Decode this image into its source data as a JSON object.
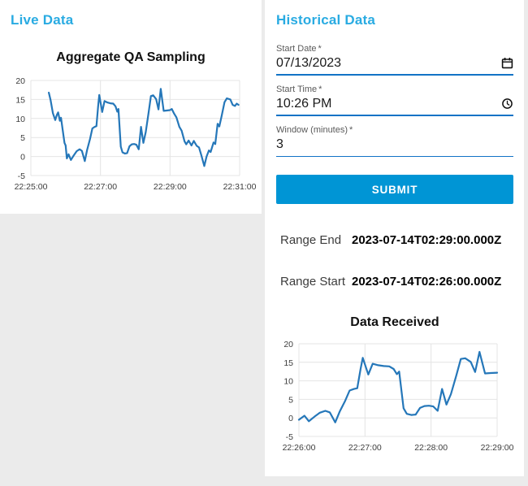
{
  "colors": {
    "page-background": "#ebebeb",
    "card-background": "#ffffff",
    "heading-blue": "#29abe2",
    "submit-blue": "#0095d5",
    "line-blue": "#2577b9",
    "underline-blue": "#1273c6",
    "grid-gray": "#e4e4e4"
  },
  "live_panel": {
    "heading": "Live Data"
  },
  "historical_panel": {
    "heading": "Historical Data",
    "form": {
      "start_date": {
        "label": "Start Date",
        "required": "*",
        "value": "07/13/2023"
      },
      "start_time": {
        "label": "Start Time",
        "required": "*",
        "value": "10:26 PM"
      },
      "window_minutes": {
        "label": "Window (minutes)",
        "required": "*",
        "value": "3"
      },
      "submit_label": "SUBMIT"
    },
    "results": {
      "range_end_label": "Range End",
      "range_end_value": "2023-07-14T02:29:00.000Z",
      "range_start_label": "Range Start",
      "range_start_value": "2023-07-14T02:26:00.000Z"
    }
  },
  "chart_data": [
    {
      "id": "aggregate-qa-sampling",
      "type": "line",
      "title": "Aggregate QA Sampling",
      "line_color": "#2577b9",
      "grid": true,
      "ylim": [
        -5,
        20
      ],
      "yticks": [
        20,
        15,
        10,
        5,
        0,
        -5
      ],
      "x_range_seconds": [
        0,
        360
      ],
      "xticks": [
        {
          "t": 0,
          "label": "22:25:00"
        },
        {
          "t": 120,
          "label": "22:27:00"
        },
        {
          "t": 240,
          "label": "22:29:00"
        },
        {
          "t": 360,
          "label": "22:31:00"
        }
      ],
      "points": [
        [
          31,
          16.8
        ],
        [
          34,
          14.8
        ],
        [
          38,
          11.4
        ],
        [
          42,
          9.6
        ],
        [
          45,
          11.0
        ],
        [
          47,
          11.6
        ],
        [
          50,
          9.4
        ],
        [
          52,
          10.2
        ],
        [
          55,
          6.8
        ],
        [
          58,
          3.6
        ],
        [
          60,
          2.9
        ],
        [
          62,
          -0.5
        ],
        [
          65,
          0.6
        ],
        [
          69,
          -0.9
        ],
        [
          74,
          0.3
        ],
        [
          79,
          1.4
        ],
        [
          84,
          1.9
        ],
        [
          88,
          1.5
        ],
        [
          93,
          -1.2
        ],
        [
          97,
          1.7
        ],
        [
          102,
          4.6
        ],
        [
          106,
          7.4
        ],
        [
          110,
          7.8
        ],
        [
          113,
          8.0
        ],
        [
          116,
          13.2
        ],
        [
          118,
          16.2
        ],
        [
          123,
          11.7
        ],
        [
          127,
          14.6
        ],
        [
          132,
          14.2
        ],
        [
          137,
          14.0
        ],
        [
          142,
          13.9
        ],
        [
          146,
          13.2
        ],
        [
          149,
          11.8
        ],
        [
          151,
          12.5
        ],
        [
          155,
          2.6
        ],
        [
          158,
          1.1
        ],
        [
          162,
          0.8
        ],
        [
          166,
          0.9
        ],
        [
          170,
          2.7
        ],
        [
          174,
          3.2
        ],
        [
          178,
          3.3
        ],
        [
          182,
          3.1
        ],
        [
          186,
          1.9
        ],
        [
          190,
          7.8
        ],
        [
          194,
          3.6
        ],
        [
          198,
          6.4
        ],
        [
          203,
          11.5
        ],
        [
          207,
          15.9
        ],
        [
          211,
          16.1
        ],
        [
          216,
          15.1
        ],
        [
          220,
          12.4
        ],
        [
          224,
          17.8
        ],
        [
          229,
          12.0
        ],
        [
          234,
          12.1
        ],
        [
          240,
          12.2
        ],
        [
          243,
          12.5
        ],
        [
          247,
          11.3
        ],
        [
          251,
          10.3
        ],
        [
          256,
          7.8
        ],
        [
          260,
          6.8
        ],
        [
          265,
          4.0
        ],
        [
          268,
          3.2
        ],
        [
          272,
          4.2
        ],
        [
          277,
          2.9
        ],
        [
          281,
          4.1
        ],
        [
          286,
          2.8
        ],
        [
          290,
          2.4
        ],
        [
          294,
          0.3
        ],
        [
          299,
          -2.5
        ],
        [
          303,
          0.0
        ],
        [
          307,
          1.6
        ],
        [
          310,
          1.2
        ],
        [
          315,
          3.7
        ],
        [
          318,
          3.3
        ],
        [
          322,
          8.6
        ],
        [
          325,
          7.9
        ],
        [
          329,
          10.7
        ],
        [
          334,
          14.3
        ],
        [
          338,
          15.3
        ],
        [
          344,
          15.0
        ],
        [
          348,
          13.6
        ],
        [
          352,
          13.3
        ],
        [
          355,
          13.9
        ],
        [
          358,
          13.6
        ]
      ]
    },
    {
      "id": "data-received",
      "type": "line",
      "title": "Data Received",
      "line_color": "#2577b9",
      "grid": true,
      "ylim": [
        -5,
        20
      ],
      "yticks": [
        20,
        15,
        10,
        5,
        0,
        -5
      ],
      "x_range_seconds": [
        0,
        180
      ],
      "xticks": [
        {
          "t": 0,
          "label": "22:26:00"
        },
        {
          "t": 60,
          "label": "22:27:00"
        },
        {
          "t": 120,
          "label": "22:28:00"
        },
        {
          "t": 180,
          "label": "22:29:00"
        }
      ],
      "points": [
        [
          0,
          -0.5
        ],
        [
          5,
          0.6
        ],
        [
          9,
          -0.9
        ],
        [
          14,
          0.3
        ],
        [
          19,
          1.4
        ],
        [
          24,
          1.9
        ],
        [
          28,
          1.5
        ],
        [
          33,
          -1.2
        ],
        [
          37,
          1.7
        ],
        [
          42,
          4.6
        ],
        [
          46,
          7.4
        ],
        [
          50,
          7.8
        ],
        [
          53,
          8.0
        ],
        [
          56,
          13.2
        ],
        [
          58,
          16.2
        ],
        [
          63,
          11.7
        ],
        [
          67,
          14.6
        ],
        [
          72,
          14.2
        ],
        [
          77,
          14.0
        ],
        [
          82,
          13.9
        ],
        [
          86,
          13.2
        ],
        [
          89,
          11.8
        ],
        [
          91,
          12.5
        ],
        [
          95,
          2.6
        ],
        [
          98,
          1.1
        ],
        [
          102,
          0.8
        ],
        [
          106,
          0.9
        ],
        [
          110,
          2.7
        ],
        [
          114,
          3.2
        ],
        [
          118,
          3.3
        ],
        [
          122,
          3.1
        ],
        [
          126,
          1.9
        ],
        [
          130,
          7.8
        ],
        [
          134,
          3.6
        ],
        [
          138,
          6.4
        ],
        [
          143,
          11.5
        ],
        [
          147,
          15.9
        ],
        [
          151,
          16.1
        ],
        [
          156,
          15.1
        ],
        [
          160,
          12.4
        ],
        [
          164,
          17.8
        ],
        [
          169,
          12.0
        ],
        [
          174,
          12.1
        ],
        [
          180,
          12.2
        ]
      ]
    }
  ]
}
